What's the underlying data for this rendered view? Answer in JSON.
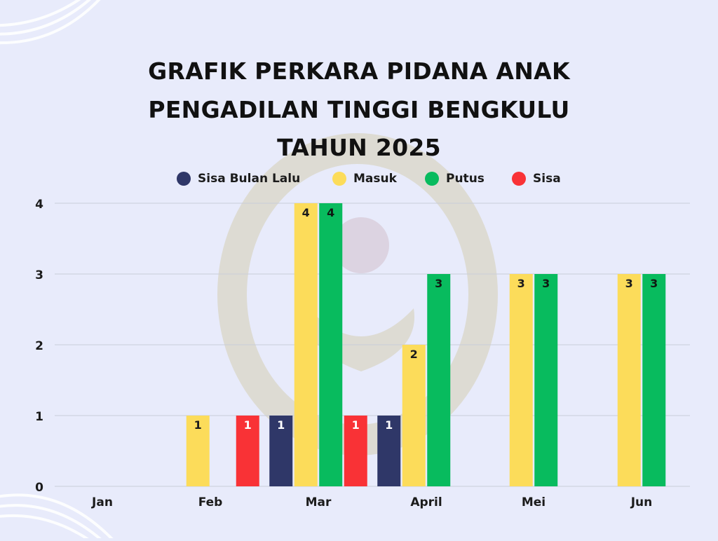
{
  "title_lines": [
    "GRAFIK PERKARA PIDANA ANAK",
    "PENGADILAN TINGGI BENGKULU",
    "TAHUN 2025"
  ],
  "chart_data": {
    "type": "bar",
    "categories": [
      "Jan",
      "Feb",
      "Mar",
      "April",
      "Mei",
      "Jun"
    ],
    "series": [
      {
        "name": "Sisa Bulan Lalu",
        "color": "#2f3768",
        "values": [
          0,
          0,
          1,
          1,
          0,
          0
        ]
      },
      {
        "name": "Masuk",
        "color": "#fcdc5a",
        "values": [
          0,
          1,
          4,
          2,
          3,
          3
        ]
      },
      {
        "name": "Putus",
        "color": "#08bb5e",
        "values": [
          0,
          0,
          4,
          3,
          3,
          3
        ]
      },
      {
        "name": "Sisa",
        "color": "#f93236",
        "values": [
          0,
          1,
          1,
          0,
          0,
          0
        ]
      }
    ],
    "ylim": [
      0,
      4
    ],
    "yticks": [
      0,
      1,
      2,
      3,
      4
    ],
    "grid": true,
    "legend_position": "top-center",
    "data_labels": true
  }
}
